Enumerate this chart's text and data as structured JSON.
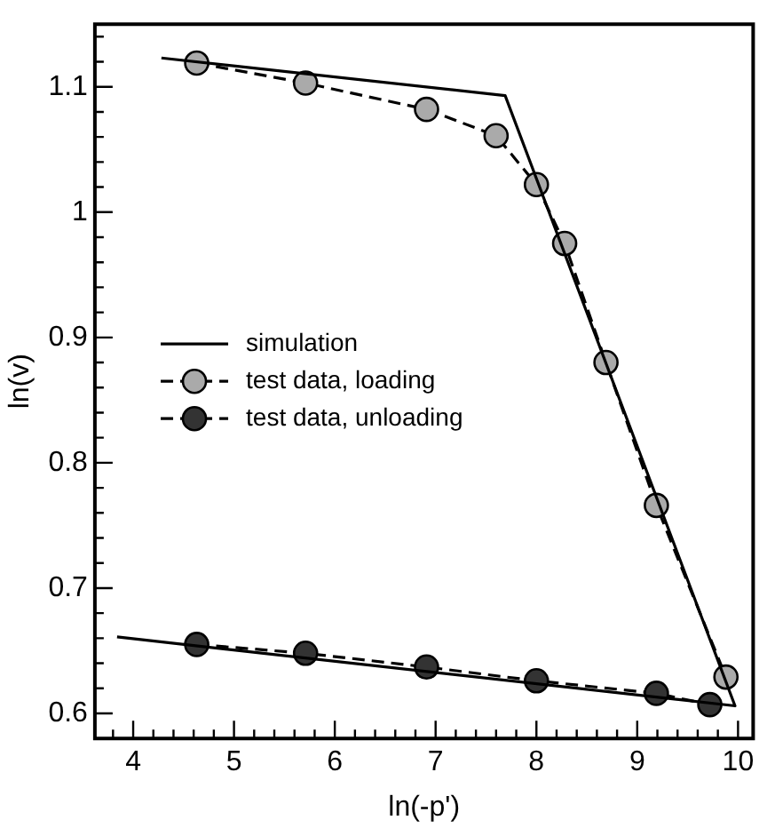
{
  "chart_data": {
    "type": "line",
    "xlabel": "ln(-p')",
    "ylabel": "ln(v)",
    "xlim": [
      3.62,
      10.15
    ],
    "ylim": [
      0.58,
      1.15
    ],
    "xticks": [
      {
        "value": 3.8,
        "label": null
      },
      4,
      {
        "value": 4.2,
        "label": null
      },
      {
        "value": 4.4,
        "label": null
      },
      {
        "value": 4.6,
        "label": null
      },
      {
        "value": 4.8,
        "label": null
      },
      5,
      {
        "value": 5.2,
        "label": null
      },
      {
        "value": 5.4,
        "label": null
      },
      {
        "value": 5.6,
        "label": null
      },
      {
        "value": 5.8,
        "label": null
      },
      6,
      {
        "value": 6.2,
        "label": null
      },
      {
        "value": 6.4,
        "label": null
      },
      {
        "value": 6.6,
        "label": null
      },
      {
        "value": 6.8,
        "label": null
      },
      7,
      {
        "value": 7.2,
        "label": null
      },
      {
        "value": 7.4,
        "label": null
      },
      {
        "value": 7.6,
        "label": null
      },
      {
        "value": 7.8,
        "label": null
      },
      8,
      {
        "value": 8.2,
        "label": null
      },
      {
        "value": 8.4,
        "label": null
      },
      {
        "value": 8.6,
        "label": null
      },
      {
        "value": 8.8,
        "label": null
      },
      9,
      {
        "value": 9.2,
        "label": null
      },
      {
        "value": 9.4,
        "label": null
      },
      {
        "value": 9.6,
        "label": null
      },
      {
        "value": 9.8,
        "label": null
      },
      10
    ],
    "yticks": [
      0.6,
      {
        "value": 0.62,
        "label": null
      },
      {
        "value": 0.64,
        "label": null
      },
      {
        "value": 0.66,
        "label": null
      },
      {
        "value": 0.68,
        "label": null
      },
      0.7,
      {
        "value": 0.72,
        "label": null
      },
      {
        "value": 0.74,
        "label": null
      },
      {
        "value": 0.76,
        "label": null
      },
      {
        "value": 0.78,
        "label": null
      },
      0.8,
      {
        "value": 0.82,
        "label": null
      },
      {
        "value": 0.84,
        "label": null
      },
      {
        "value": 0.86,
        "label": null
      },
      {
        "value": 0.88,
        "label": null
      },
      0.9,
      {
        "value": 0.92,
        "label": null
      },
      {
        "value": 0.94,
        "label": null
      },
      {
        "value": 0.96,
        "label": null
      },
      {
        "value": 0.98,
        "label": null
      },
      1,
      {
        "value": 1.02,
        "label": null
      },
      {
        "value": 1.04,
        "label": null
      },
      {
        "value": 1.06,
        "label": null
      },
      {
        "value": 1.08,
        "label": null
      },
      1.1,
      {
        "value": 1.12,
        "label": null
      },
      {
        "value": 1.14,
        "label": null
      }
    ],
    "grid": false,
    "legend": "left",
    "series": [
      {
        "name": "simulation",
        "color": "#000000",
        "marker": "none",
        "line_style": "solid",
        "x": [
          4.28,
          7.69,
          9.97,
          3.84
        ],
        "values": [
          1.123,
          1.093,
          0.606,
          0.661
        ]
      },
      {
        "name": "test data, loading",
        "color": "#aaaaaa",
        "marker": "circle",
        "line_style": "dashed",
        "x": [
          4.63,
          5.71,
          6.91,
          7.6,
          8.0,
          8.28,
          8.69,
          9.19,
          9.88
        ],
        "values": [
          1.119,
          1.103,
          1.082,
          1.061,
          1.022,
          0.975,
          0.88,
          0.766,
          0.629
        ]
      },
      {
        "name": "test data, unloading",
        "color": "#333333",
        "marker": "circle",
        "line_style": "dashed",
        "x": [
          4.63,
          5.71,
          6.91,
          8.0,
          9.19,
          9.72
        ],
        "values": [
          0.655,
          0.648,
          0.637,
          0.626,
          0.616,
          0.607
        ]
      }
    ]
  }
}
